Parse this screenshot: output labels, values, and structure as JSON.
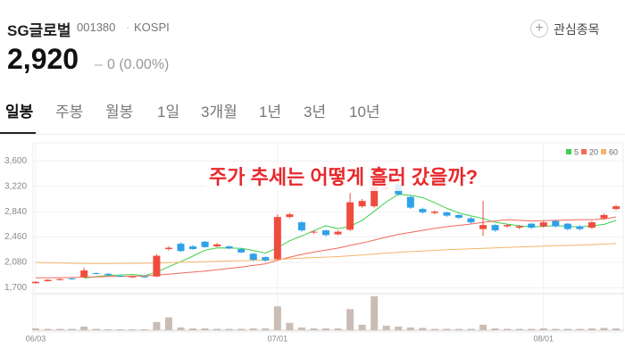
{
  "header": {
    "name": "SG글로벌",
    "code": "001380",
    "market": "KOSPI",
    "price": "2,920",
    "change_sign": "–",
    "change": "0 (0.00%)",
    "button": "관심종목"
  },
  "tabs": [
    "일봉",
    "주봉",
    "월봉",
    "1일",
    "3개월",
    "1년",
    "3년",
    "10년"
  ],
  "chart_data": {
    "type": "candlestick",
    "annotation": "주가 추세는 어떻게 흘러 갔을까?",
    "categories": [
      "06/03",
      null,
      null,
      null,
      null,
      null,
      null,
      null,
      null,
      null,
      null,
      null,
      null,
      null,
      null,
      null,
      null,
      null,
      null,
      null,
      "07/01",
      null,
      null,
      null,
      null,
      null,
      null,
      null,
      null,
      null,
      null,
      null,
      null,
      null,
      null,
      null,
      null,
      null,
      null,
      null,
      null,
      null,
      "08/01",
      null,
      null,
      null,
      null,
      null,
      null
    ],
    "open": [
      1770,
      1800,
      1820,
      1840,
      1860,
      1920,
      1910,
      1880,
      1860,
      1870,
      1870,
      2280,
      2360,
      2320,
      2390,
      2320,
      2320,
      2280,
      2210,
      2160,
      2130,
      2760,
      2680,
      2530,
      2560,
      2500,
      2570,
      2920,
      2920,
      3180,
      3250,
      3060,
      2880,
      2820,
      2830,
      2790,
      2740,
      2580,
      2640,
      2620,
      2600,
      2660,
      2620,
      2700,
      2660,
      2620,
      2600,
      2740,
      2880
    ],
    "high": [
      1800,
      1830,
      1840,
      1850,
      2000,
      1930,
      1920,
      1890,
      1880,
      1880,
      2200,
      2320,
      2380,
      2340,
      2400,
      2370,
      2330,
      2290,
      2220,
      2170,
      2800,
      2820,
      2700,
      2560,
      2570,
      2560,
      3120,
      3030,
      3360,
      3220,
      3280,
      3080,
      2900,
      2860,
      2840,
      2800,
      2760,
      3000,
      2650,
      2650,
      2640,
      2670,
      2700,
      2720,
      2670,
      2640,
      2700,
      2810,
      2940
    ],
    "low": [
      1760,
      1790,
      1810,
      1820,
      1850,
      1900,
      1880,
      1860,
      1850,
      1850,
      1860,
      2260,
      2240,
      2270,
      2300,
      2310,
      2280,
      2220,
      2100,
      2090,
      2120,
      2740,
      2540,
      2510,
      2470,
      2490,
      2550,
      2900,
      2900,
      3160,
      3080,
      2880,
      2810,
      2800,
      2760,
      2730,
      2660,
      2480,
      2540,
      2600,
      2580,
      2580,
      2600,
      2600,
      2560,
      2560,
      2580,
      2720,
      2860
    ],
    "close": [
      1790,
      1820,
      1830,
      1830,
      1960,
      1910,
      1890,
      1870,
      1870,
      1860,
      2180,
      2300,
      2250,
      2280,
      2310,
      2350,
      2290,
      2230,
      2120,
      2110,
      2760,
      2800,
      2560,
      2540,
      2490,
      2540,
      2980,
      3000,
      3220,
      3200,
      3100,
      2900,
      2830,
      2840,
      2780,
      2750,
      2680,
      2640,
      2560,
      2640,
      2620,
      2600,
      2680,
      2620,
      2580,
      2580,
      2680,
      2790,
      2920
    ],
    "volume": [
      20,
      15,
      15,
      15,
      40,
      15,
      10,
      10,
      10,
      10,
      90,
      140,
      30,
      20,
      20,
      15,
      15,
      15,
      20,
      20,
      260,
      80,
      30,
      20,
      20,
      20,
      230,
      60,
      370,
      50,
      40,
      30,
      25,
      15,
      15,
      15,
      15,
      60,
      20,
      15,
      15,
      15,
      20,
      15,
      15,
      15,
      20,
      25,
      20
    ],
    "volume_color": "#c9bdb5",
    "up_color": "#f04c3e",
    "down_color": "#2ea1e8",
    "series": [
      {
        "name": "5",
        "color": "#3fcf4a",
        "values": [
          null,
          null,
          null,
          null,
          1846,
          1868,
          1884,
          1892,
          1900,
          1880,
          1936,
          2016,
          2092,
          2174,
          2264,
          2298,
          2296,
          2292,
          2260,
          2220,
          2302,
          2404,
          2476,
          2554,
          2630,
          2586,
          2622,
          2710,
          2846,
          2988,
          3100,
          3084,
          3050,
          2974,
          2890,
          2820,
          2776,
          2738,
          2682,
          2654,
          2628,
          2612,
          2620,
          2632,
          2620,
          2612,
          2628,
          2650,
          2710
        ]
      },
      {
        "name": "20",
        "color": "#f06a5a",
        "values": [
          1850,
          1850,
          1852,
          1855,
          1860,
          1865,
          1870,
          1872,
          1875,
          1878,
          1890,
          1905,
          1920,
          1935,
          1950,
          1970,
          1990,
          2010,
          2035,
          2060,
          2110,
          2160,
          2200,
          2235,
          2265,
          2295,
          2335,
          2370,
          2415,
          2460,
          2500,
          2530,
          2560,
          2590,
          2615,
          2635,
          2655,
          2680,
          2700,
          2720,
          2710,
          2700,
          2705,
          2710,
          2715,
          2720,
          2720,
          2730,
          2760
        ]
      },
      {
        "name": "60",
        "color": "#f5b46a",
        "values": [
          2080,
          2075,
          2070,
          2068,
          2066,
          2065,
          2065,
          2066,
          2067,
          2068,
          2072,
          2078,
          2083,
          2088,
          2093,
          2098,
          2102,
          2106,
          2110,
          2114,
          2125,
          2136,
          2145,
          2153,
          2160,
          2168,
          2180,
          2192,
          2206,
          2220,
          2232,
          2242,
          2252,
          2261,
          2270,
          2278,
          2285,
          2292,
          2298,
          2305,
          2312,
          2318,
          2324,
          2330,
          2335,
          2340,
          2346,
          2354,
          2364
        ]
      }
    ],
    "ylim": [
      1640,
      3710
    ],
    "yticks": [
      {
        "value": 1700,
        "label": "1,700"
      },
      {
        "value": 2080,
        "label": "2,080"
      },
      {
        "value": 2460,
        "label": "2,460"
      },
      {
        "value": 2840,
        "label": "2,840"
      },
      {
        "value": 3220,
        "label": "3,220"
      },
      {
        "value": 3600,
        "label": "3,600"
      }
    ],
    "grid": true,
    "legend": "top-right"
  }
}
